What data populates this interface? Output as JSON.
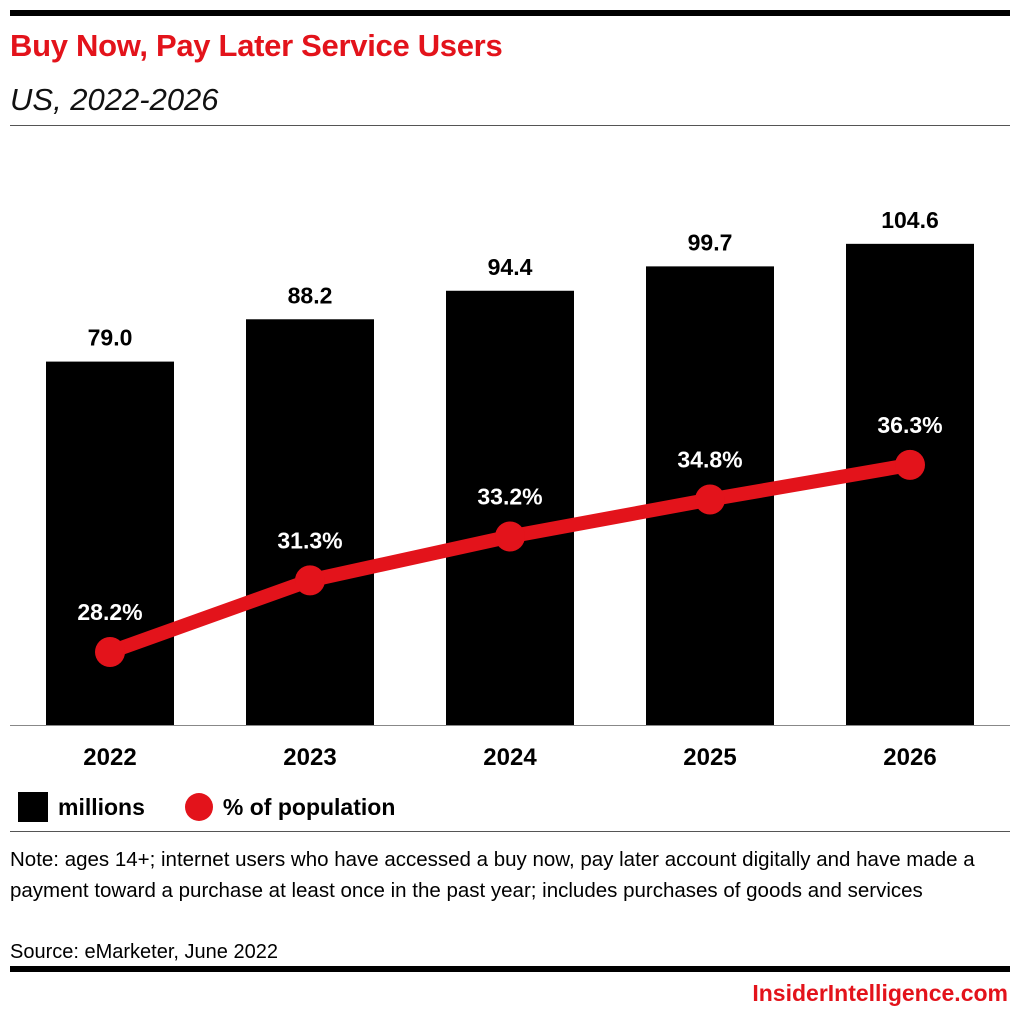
{
  "header": {
    "title": "Buy Now, Pay Later Service Users",
    "subtitle": "US, 2022-2026"
  },
  "chart_data": {
    "type": "bar",
    "categories": [
      "2022",
      "2023",
      "2024",
      "2025",
      "2026"
    ],
    "series": [
      {
        "name": "millions",
        "type": "bar",
        "values": [
          79.0,
          88.2,
          94.4,
          99.7,
          104.6
        ],
        "labels": [
          "79.0",
          "88.2",
          "94.4",
          "99.7",
          "104.6"
        ],
        "color": "#000000"
      },
      {
        "name": "% of population",
        "type": "line",
        "values": [
          28.2,
          31.3,
          33.2,
          34.8,
          36.3
        ],
        "labels": [
          "28.2%",
          "31.3%",
          "33.2%",
          "34.8%",
          "36.3%"
        ],
        "color": "#e3131b"
      }
    ],
    "legend_position": "bottom-left",
    "grid": false
  },
  "legend": {
    "bar_label": "millions",
    "line_label": "% of population"
  },
  "footer": {
    "note": "Note: ages 14+; internet users who have accessed a buy now, pay later account digitally and have made a payment toward a purchase at least once in the past year; includes purchases of goods and services",
    "source": "Source: eMarketer, June 2022",
    "brand": "InsiderIntelligence.com"
  },
  "colors": {
    "accent": "#e3131b",
    "bar": "#000000"
  }
}
